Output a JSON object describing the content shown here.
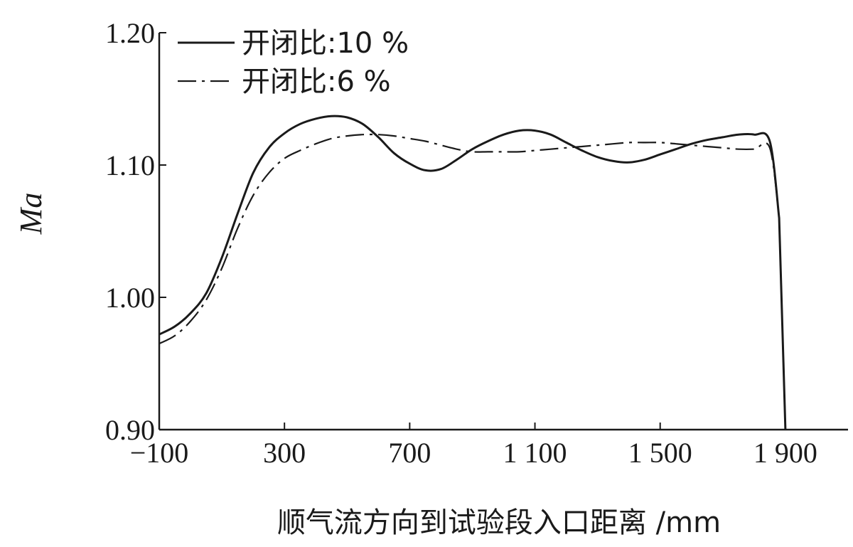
{
  "chart_data": {
    "type": "line",
    "xlabel": "顺气流方向到试验段入口距离 /mm",
    "ylabel": "Ma",
    "xlim": [
      -100,
      2100
    ],
    "ylim": [
      0.9,
      1.2
    ],
    "xticks": [
      -100,
      300,
      700,
      1100,
      1500,
      1900
    ],
    "xtick_labels": [
      "−100",
      "300",
      "700",
      "1 100",
      "1 500",
      "1 900"
    ],
    "yticks": [
      0.9,
      1.0,
      1.1,
      1.2
    ],
    "ytick_labels": [
      "0.90",
      "1.00",
      "1.10",
      "1.20"
    ],
    "grid": false,
    "legend_position": "top-left",
    "series": [
      {
        "name": "开闭比:10 %",
        "style": "solid",
        "color": "#1a1a1a",
        "x": [
          -100,
          -50,
          0,
          50,
          100,
          150,
          200,
          250,
          300,
          350,
          400,
          450,
          500,
          550,
          600,
          650,
          700,
          750,
          800,
          850,
          900,
          950,
          1000,
          1050,
          1100,
          1150,
          1200,
          1250,
          1300,
          1350,
          1400,
          1450,
          1500,
          1550,
          1600,
          1650,
          1700,
          1750,
          1800,
          1850,
          1880,
          1900
        ],
        "y": [
          0.972,
          0.978,
          0.988,
          1.003,
          1.03,
          1.063,
          1.094,
          1.113,
          1.124,
          1.131,
          1.135,
          1.137,
          1.136,
          1.131,
          1.121,
          1.109,
          1.101,
          1.096,
          1.097,
          1.104,
          1.112,
          1.118,
          1.123,
          1.126,
          1.126,
          1.123,
          1.117,
          1.111,
          1.106,
          1.103,
          1.102,
          1.104,
          1.108,
          1.112,
          1.116,
          1.119,
          1.121,
          1.123,
          1.123,
          1.118,
          1.06,
          0.9
        ]
      },
      {
        "name": "开闭比:6 %",
        "style": "dashdot",
        "color": "#1a1a1a",
        "x": [
          -100,
          -50,
          0,
          50,
          100,
          150,
          200,
          250,
          300,
          350,
          400,
          450,
          500,
          550,
          600,
          650,
          700,
          750,
          800,
          850,
          900,
          950,
          1000,
          1050,
          1100,
          1150,
          1200,
          1250,
          1300,
          1350,
          1400,
          1450,
          1500,
          1550,
          1600,
          1650,
          1700,
          1750,
          1800,
          1850,
          1880,
          1900
        ],
        "y": [
          0.965,
          0.971,
          0.982,
          0.998,
          1.022,
          1.052,
          1.077,
          1.094,
          1.105,
          1.111,
          1.116,
          1.12,
          1.122,
          1.123,
          1.123,
          1.122,
          1.12,
          1.118,
          1.115,
          1.112,
          1.11,
          1.11,
          1.11,
          1.11,
          1.111,
          1.112,
          1.113,
          1.114,
          1.115,
          1.116,
          1.117,
          1.117,
          1.117,
          1.116,
          1.115,
          1.114,
          1.113,
          1.112,
          1.112,
          1.113,
          1.06,
          0.9
        ]
      }
    ]
  }
}
